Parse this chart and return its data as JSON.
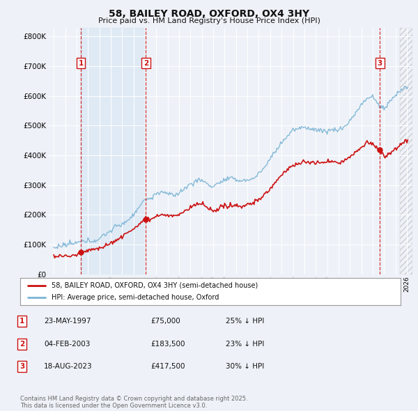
{
  "title": "58, BAILEY ROAD, OXFORD, OX4 3HY",
  "subtitle": "Price paid vs. HM Land Registry's House Price Index (HPI)",
  "ylabel_ticks": [
    "£0",
    "£100K",
    "£200K",
    "£300K",
    "£400K",
    "£500K",
    "£600K",
    "£700K",
    "£800K"
  ],
  "ytick_values": [
    0,
    100000,
    200000,
    300000,
    400000,
    500000,
    600000,
    700000,
    800000
  ],
  "ylim": [
    0,
    830000
  ],
  "xlim_start": 1994.5,
  "xlim_end": 2026.5,
  "hpi_color": "#7ab3d4",
  "hpi_fill_color": "#c8dff0",
  "price_color": "#cc1111",
  "vline_color": "#cc1111",
  "background_color": "#eef2f8",
  "plot_bg_color": "#eef2f8",
  "grid_color": "#ffffff",
  "shade_region": [
    1997.39,
    2003.09
  ],
  "transactions": [
    {
      "date": 1997.39,
      "price": 75000,
      "label": "1"
    },
    {
      "date": 2003.09,
      "price": 183500,
      "label": "2"
    },
    {
      "date": 2023.63,
      "price": 417500,
      "label": "3"
    }
  ],
  "legend_label_price": "58, BAILEY ROAD, OXFORD, OX4 3HY (semi-detached house)",
  "legend_label_hpi": "HPI: Average price, semi-detached house, Oxford",
  "table_rows": [
    {
      "num": "1",
      "date": "23-MAY-1997",
      "price": "£75,000",
      "hpi": "25% ↓ HPI"
    },
    {
      "num": "2",
      "date": "04-FEB-2003",
      "price": "£183,500",
      "hpi": "23% ↓ HPI"
    },
    {
      "num": "3",
      "date": "18-AUG-2023",
      "price": "£417,500",
      "hpi": "30% ↓ HPI"
    }
  ],
  "footnote": "Contains HM Land Registry data © Crown copyright and database right 2025.\nThis data is licensed under the Open Government Licence v3.0."
}
